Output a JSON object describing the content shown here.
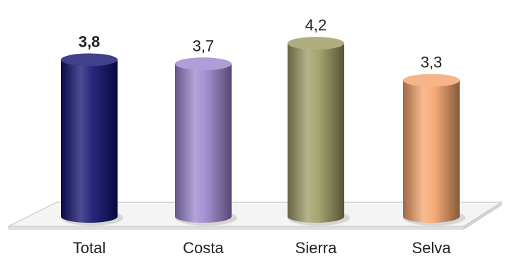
{
  "chart_data": {
    "type": "bar",
    "style": "3d-cylinder",
    "categories": [
      "Total",
      "Costa",
      "Sierra",
      "Selva"
    ],
    "values": [
      3.8,
      3.7,
      4.2,
      3.3
    ],
    "value_labels": [
      "3,8",
      "3,7",
      "4,2",
      "3,3"
    ],
    "highlight_index": 0,
    "colors": [
      "#10106e",
      "#9a84cc",
      "#9c9a62",
      "#f4a36a"
    ],
    "title": "",
    "xlabel": "",
    "ylabel": "",
    "ylim": [
      0,
      4.5
    ],
    "grid": false,
    "legend": "none"
  }
}
